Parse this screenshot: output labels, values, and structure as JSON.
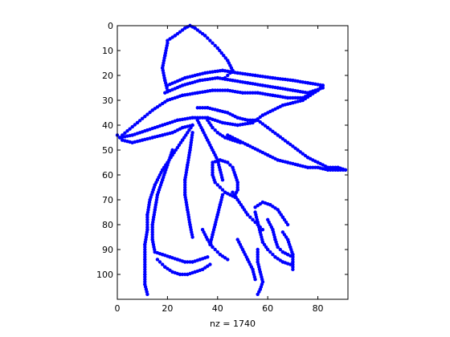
{
  "chart_data": {
    "type": "scatter",
    "title": "",
    "xlabel": "nz = 1740",
    "ylabel": "",
    "xlim": [
      0,
      92
    ],
    "ylim": [
      0,
      110
    ],
    "y_reversed": true,
    "grid": false,
    "marker": "filled-circle",
    "color": "#0000ff",
    "x_ticks": [
      0,
      20,
      40,
      60,
      80
    ],
    "y_ticks": [
      0,
      10,
      20,
      30,
      40,
      50,
      60,
      70,
      80,
      90,
      100
    ],
    "x_tick_labels": [
      "0",
      "20",
      "40",
      "60",
      "80"
    ],
    "y_tick_labels": [
      "0",
      "10",
      "20",
      "30",
      "40",
      "50",
      "60",
      "70",
      "80",
      "90",
      "100"
    ],
    "nz": 1740,
    "strokes": [
      {
        "name": "hat-crown-left",
        "points": [
          [
            20,
            6
          ],
          [
            23,
            4
          ],
          [
            27,
            1
          ],
          [
            29,
            0
          ],
          [
            31,
            1
          ]
        ]
      },
      {
        "name": "hat-crown-right",
        "points": [
          [
            31,
            1
          ],
          [
            35,
            4
          ],
          [
            40,
            9
          ],
          [
            44,
            14
          ],
          [
            46,
            18
          ],
          [
            43,
            21
          ]
        ]
      },
      {
        "name": "hat-crown-inner",
        "points": [
          [
            20,
            7
          ],
          [
            19,
            12
          ],
          [
            18,
            17
          ],
          [
            19,
            22
          ],
          [
            20,
            26
          ]
        ]
      },
      {
        "name": "hat-band-top",
        "points": [
          [
            20,
            24
          ],
          [
            27,
            21
          ],
          [
            35,
            19
          ],
          [
            42,
            18
          ],
          [
            48,
            19
          ],
          [
            55,
            20
          ],
          [
            62,
            21
          ],
          [
            70,
            22
          ],
          [
            76,
            23
          ],
          [
            82,
            24
          ]
        ]
      },
      {
        "name": "hat-band-bottom",
        "points": [
          [
            19,
            27
          ],
          [
            26,
            24
          ],
          [
            33,
            22
          ],
          [
            40,
            21
          ],
          [
            46,
            22
          ],
          [
            52,
            23
          ],
          [
            58,
            24
          ],
          [
            64,
            25
          ],
          [
            70,
            26
          ],
          [
            76,
            27
          ],
          [
            82,
            25
          ]
        ]
      },
      {
        "name": "brim-upper",
        "points": [
          [
            2,
            44
          ],
          [
            8,
            39
          ],
          [
            14,
            34
          ],
          [
            20,
            30
          ],
          [
            26,
            28
          ],
          [
            32,
            27
          ],
          [
            38,
            26
          ],
          [
            44,
            26
          ],
          [
            50,
            27
          ],
          [
            56,
            27
          ],
          [
            62,
            28
          ],
          [
            68,
            29
          ],
          [
            74,
            29
          ],
          [
            80,
            26
          ],
          [
            82,
            24
          ]
        ]
      },
      {
        "name": "brim-lower",
        "points": [
          [
            1,
            45
          ],
          [
            6,
            44
          ],
          [
            12,
            42
          ],
          [
            18,
            40
          ],
          [
            24,
            38
          ],
          [
            30,
            37
          ],
          [
            36,
            37
          ],
          [
            42,
            39
          ],
          [
            48,
            40
          ],
          [
            54,
            39
          ],
          [
            58,
            36
          ],
          [
            62,
            34
          ],
          [
            66,
            32
          ],
          [
            70,
            31
          ],
          [
            74,
            30
          ],
          [
            80,
            26
          ]
        ]
      },
      {
        "name": "brim-tip",
        "points": [
          [
            0,
            44
          ],
          [
            2,
            46
          ],
          [
            6,
            47
          ],
          [
            10,
            46
          ],
          [
            14,
            45
          ],
          [
            18,
            44
          ],
          [
            22,
            43
          ],
          [
            26,
            41
          ],
          [
            30,
            40
          ]
        ]
      },
      {
        "name": "hat-underside",
        "points": [
          [
            32,
            33
          ],
          [
            36,
            33
          ],
          [
            40,
            34
          ],
          [
            44,
            35
          ],
          [
            48,
            37
          ],
          [
            52,
            38
          ],
          [
            56,
            38
          ]
        ]
      },
      {
        "name": "cloak-back",
        "points": [
          [
            30,
            40
          ],
          [
            26,
            46
          ],
          [
            22,
            52
          ],
          [
            18,
            58
          ],
          [
            15,
            64
          ],
          [
            13,
            70
          ],
          [
            12,
            76
          ],
          [
            12,
            82
          ],
          [
            11,
            88
          ],
          [
            11,
            94
          ],
          [
            11,
            100
          ],
          [
            11,
            104
          ],
          [
            12,
            108
          ]
        ]
      },
      {
        "name": "cloak-front",
        "points": [
          [
            30,
            43
          ],
          [
            29,
            50
          ],
          [
            28,
            56
          ],
          [
            27,
            62
          ],
          [
            27,
            68
          ],
          [
            28,
            74
          ],
          [
            29,
            80
          ],
          [
            30,
            85
          ]
        ]
      },
      {
        "name": "cloak-inner-fold",
        "points": [
          [
            22,
            50
          ],
          [
            20,
            56
          ],
          [
            18,
            62
          ],
          [
            16,
            68
          ],
          [
            15,
            74
          ],
          [
            14,
            80
          ],
          [
            14,
            86
          ],
          [
            15,
            91
          ]
        ]
      },
      {
        "name": "cloak-bottom",
        "points": [
          [
            15,
            91
          ],
          [
            18,
            92
          ],
          [
            21,
            93
          ],
          [
            24,
            94
          ],
          [
            27,
            95
          ],
          [
            30,
            95
          ],
          [
            33,
            94
          ],
          [
            36,
            93
          ]
        ]
      },
      {
        "name": "cloak-lower-edge",
        "points": [
          [
            16,
            94
          ],
          [
            19,
            97
          ],
          [
            22,
            99
          ],
          [
            25,
            100
          ],
          [
            28,
            100
          ],
          [
            31,
            99
          ],
          [
            34,
            98
          ],
          [
            37,
            96
          ]
        ]
      },
      {
        "name": "collar",
        "points": [
          [
            32,
            38
          ],
          [
            34,
            42
          ],
          [
            36,
            46
          ],
          [
            38,
            50
          ],
          [
            40,
            54
          ],
          [
            41,
            58
          ],
          [
            42,
            62
          ]
        ]
      },
      {
        "name": "face-line",
        "points": [
          [
            36,
            38
          ],
          [
            38,
            41
          ],
          [
            40,
            43
          ],
          [
            43,
            45
          ],
          [
            46,
            46
          ],
          [
            49,
            47
          ]
        ]
      },
      {
        "name": "nose-brim-shadow",
        "points": [
          [
            44,
            44
          ],
          [
            48,
            46
          ],
          [
            52,
            48
          ],
          [
            56,
            50
          ],
          [
            60,
            52
          ],
          [
            64,
            54
          ],
          [
            68,
            55
          ],
          [
            72,
            56
          ],
          [
            76,
            57
          ],
          [
            80,
            57
          ],
          [
            84,
            58
          ],
          [
            88,
            58
          ],
          [
            91,
            58
          ]
        ]
      },
      {
        "name": "brim-right-edge",
        "points": [
          [
            56,
            38
          ],
          [
            60,
            41
          ],
          [
            64,
            44
          ],
          [
            68,
            47
          ],
          [
            72,
            50
          ],
          [
            76,
            53
          ],
          [
            80,
            55
          ],
          [
            84,
            57
          ],
          [
            88,
            57
          ],
          [
            91,
            58
          ]
        ]
      },
      {
        "name": "glove-upper",
        "points": [
          [
            38,
            55
          ],
          [
            41,
            54
          ],
          [
            44,
            55
          ],
          [
            46,
            57
          ],
          [
            47,
            60
          ],
          [
            48,
            63
          ],
          [
            48,
            66
          ],
          [
            47,
            68
          ]
        ]
      },
      {
        "name": "glove-fingers",
        "points": [
          [
            38,
            56
          ],
          [
            38,
            60
          ],
          [
            39,
            63
          ],
          [
            41,
            65
          ],
          [
            43,
            67
          ],
          [
            45,
            68
          ],
          [
            47,
            69
          ]
        ]
      },
      {
        "name": "wrist-arm",
        "points": [
          [
            42,
            68
          ],
          [
            41,
            72
          ],
          [
            40,
            76
          ],
          [
            39,
            80
          ],
          [
            38,
            84
          ],
          [
            37,
            88
          ]
        ]
      },
      {
        "name": "arm-lower",
        "points": [
          [
            34,
            82
          ],
          [
            36,
            86
          ],
          [
            38,
            89
          ],
          [
            41,
            92
          ],
          [
            44,
            94
          ]
        ]
      },
      {
        "name": "dagger-blade",
        "points": [
          [
            46,
            67
          ],
          [
            48,
            70
          ],
          [
            50,
            73
          ],
          [
            52,
            76
          ],
          [
            54,
            78
          ],
          [
            56,
            80
          ],
          [
            58,
            82
          ]
        ]
      },
      {
        "name": "lower-hand-top",
        "points": [
          [
            55,
            73
          ],
          [
            58,
            71
          ],
          [
            61,
            72
          ],
          [
            64,
            74
          ],
          [
            66,
            77
          ],
          [
            68,
            80
          ]
        ]
      },
      {
        "name": "lower-hand-knuckles",
        "points": [
          [
            55,
            75
          ],
          [
            56,
            79
          ],
          [
            57,
            83
          ],
          [
            58,
            87
          ],
          [
            60,
            90
          ],
          [
            63,
            93
          ],
          [
            66,
            95
          ],
          [
            69,
            96
          ]
        ]
      },
      {
        "name": "lower-hand-fingers",
        "points": [
          [
            60,
            78
          ],
          [
            62,
            82
          ],
          [
            63,
            86
          ],
          [
            64,
            89
          ],
          [
            66,
            91
          ],
          [
            68,
            92
          ],
          [
            70,
            93
          ]
        ]
      },
      {
        "name": "lower-hand-thumb",
        "points": [
          [
            66,
            83
          ],
          [
            68,
            86
          ],
          [
            69,
            89
          ],
          [
            70,
            92
          ],
          [
            70,
            95
          ],
          [
            70,
            98
          ]
        ]
      },
      {
        "name": "lower-hand-cuff",
        "points": [
          [
            56,
            90
          ],
          [
            56,
            95
          ],
          [
            57,
            99
          ],
          [
            58,
            103
          ],
          [
            57,
            106
          ],
          [
            56,
            108
          ]
        ]
      },
      {
        "name": "lower-hand-edge",
        "points": [
          [
            48,
            86
          ],
          [
            50,
            90
          ],
          [
            52,
            94
          ],
          [
            54,
            98
          ],
          [
            55,
            102
          ]
        ]
      }
    ]
  }
}
